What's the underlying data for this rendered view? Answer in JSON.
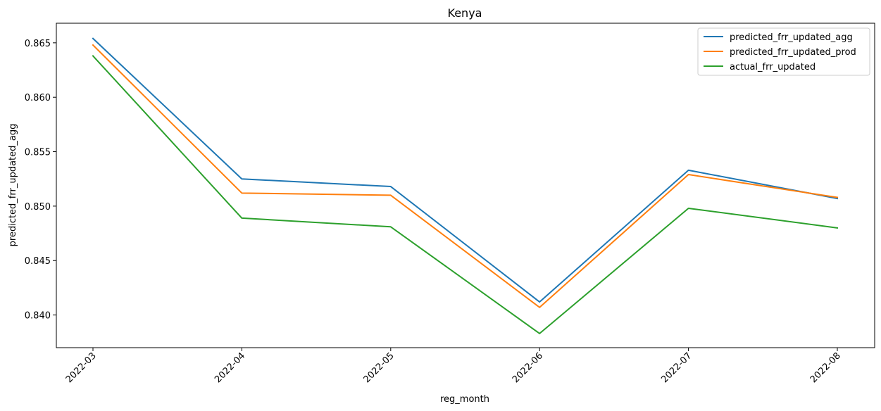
{
  "chart_data": {
    "type": "line",
    "title": "Kenya",
    "xlabel": "reg_month",
    "ylabel": "predicted_frr_updated_agg",
    "categories": [
      "2022-03",
      "2022-04",
      "2022-05",
      "2022-06",
      "2022-07",
      "2022-08"
    ],
    "yticks": [
      "0.840",
      "0.845",
      "0.850",
      "0.855",
      "0.860",
      "0.865"
    ],
    "ylim": [
      0.837,
      0.8668
    ],
    "grid": false,
    "legend_position": "top-right",
    "series": [
      {
        "name": "predicted_frr_updated_agg",
        "color": "#1f77b4",
        "values": [
          0.8654,
          0.8525,
          0.8518,
          0.8412,
          0.8533,
          0.8507
        ]
      },
      {
        "name": "predicted_frr_updated_prod",
        "color": "#ff7f0e",
        "values": [
          0.8648,
          0.8512,
          0.851,
          0.8407,
          0.8529,
          0.8508
        ]
      },
      {
        "name": "actual_frr_updated",
        "color": "#2ca02c",
        "values": [
          0.8638,
          0.8489,
          0.8481,
          0.8383,
          0.8498,
          0.848
        ]
      }
    ]
  }
}
